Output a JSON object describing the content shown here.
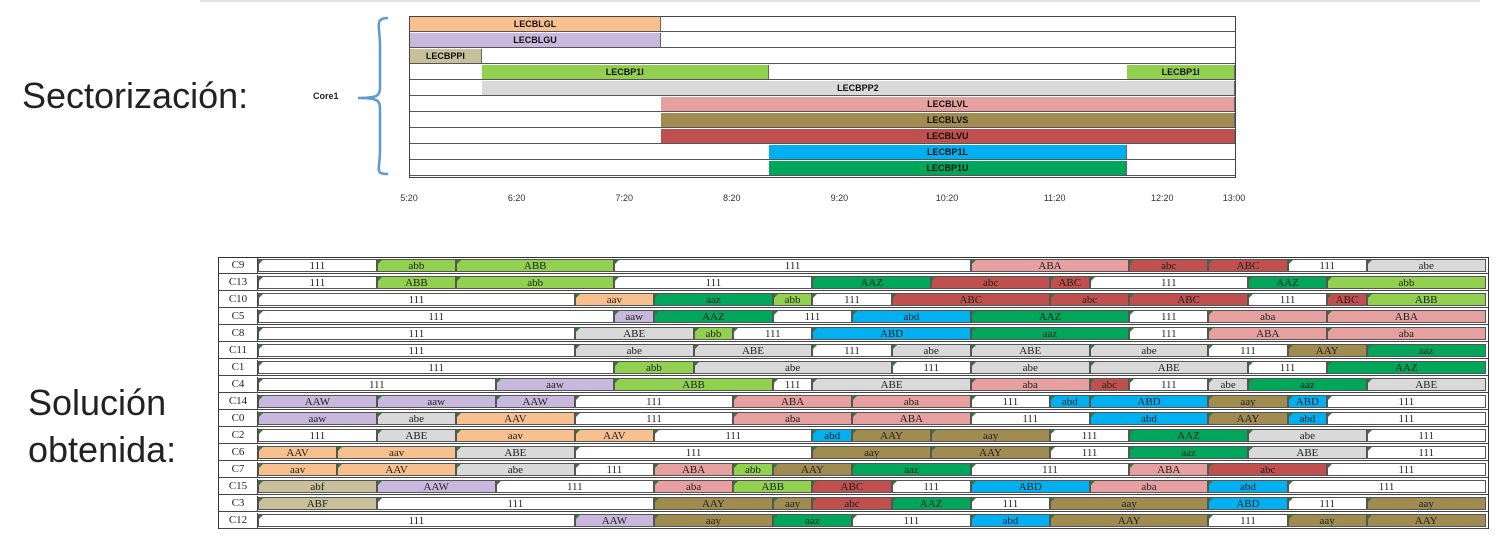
{
  "labels": {
    "sectorizacion": "Sectorización:",
    "solucion_line1": "Solución",
    "solucion_line2": "obtenida:",
    "core": "Core1"
  },
  "colors": {
    "orange": "#f9c08f",
    "lavender": "#c9b8dd",
    "tan": "#c7c09a",
    "green": "#92d050",
    "gray": "#d9d9d9",
    "pink": "#e6a0a0",
    "olive": "#a08c50",
    "red": "#c0504d",
    "blue": "#00b0f0",
    "darkgreen": "#00a65a",
    "white": "#ffffff"
  },
  "top_chart": {
    "start_minutes": 320,
    "end_minutes": 780,
    "ticks": [
      "5:20",
      "6:20",
      "7:20",
      "8:20",
      "9:20",
      "10:20",
      "11:20",
      "12:20",
      "13:00"
    ],
    "rows": [
      [
        {
          "label": "LECBLGL",
          "start": "5:20",
          "end": "7:40",
          "color": "orange"
        }
      ],
      [
        {
          "label": "LECBLGU",
          "start": "5:20",
          "end": "7:40",
          "color": "lavender"
        }
      ],
      [
        {
          "label": "LECBPPI",
          "start": "5:20",
          "end": "6:00",
          "color": "tan"
        }
      ],
      [
        {
          "label": "LECBP1I",
          "start": "6:00",
          "end": "8:40",
          "color": "green"
        },
        {
          "label": "LECBP1I",
          "start": "12:00",
          "end": "13:00",
          "color": "green"
        }
      ],
      [
        {
          "label": "LECBPP2",
          "start": "6:00",
          "end": "13:00",
          "color": "gray"
        }
      ],
      [
        {
          "label": "LECBLVL",
          "start": "7:40",
          "end": "13:00",
          "color": "pink"
        }
      ],
      [
        {
          "label": "LECBLVS",
          "start": "7:40",
          "end": "13:00",
          "color": "olive"
        }
      ],
      [
        {
          "label": "LECBLVU",
          "start": "7:40",
          "end": "13:00",
          "color": "red"
        }
      ],
      [
        {
          "label": "LECBP1L",
          "start": "8:40",
          "end": "12:00",
          "color": "blue"
        }
      ],
      [
        {
          "label": "LECBP1U",
          "start": "8:40",
          "end": "12:00",
          "color": "darkgreen"
        }
      ]
    ]
  },
  "bottom_chart": {
    "slots": 35,
    "rows": [
      {
        "label": "C9",
        "cells": [
          [
            "111",
            0,
            3,
            "white"
          ],
          [
            "abb",
            3,
            5,
            "green"
          ],
          [
            "ABB",
            5,
            9,
            "green"
          ],
          [
            "111",
            9,
            18,
            "white"
          ],
          [
            "ABA",
            18,
            22,
            "pink"
          ],
          [
            "abc",
            22,
            24,
            "red"
          ],
          [
            "ABC",
            24,
            26,
            "red"
          ],
          [
            "111",
            26,
            28,
            "white"
          ],
          [
            "abe",
            28,
            31,
            "gray"
          ]
        ]
      },
      {
        "label": "C13",
        "cells": [
          [
            "111",
            0,
            3,
            "white"
          ],
          [
            "ABB",
            3,
            5,
            "green"
          ],
          [
            "abb",
            5,
            9,
            "green"
          ],
          [
            "111",
            9,
            14,
            "white"
          ],
          [
            "AAZ",
            14,
            17,
            "darkgreen"
          ],
          [
            "abc",
            17,
            20,
            "red"
          ],
          [
            "ABC",
            20,
            21,
            "red"
          ],
          [
            "111",
            21,
            25,
            "white"
          ],
          [
            "AAZ",
            25,
            27,
            "darkgreen"
          ],
          [
            "abb",
            27,
            31,
            "green"
          ]
        ]
      },
      {
        "label": "C10",
        "cells": [
          [
            "111",
            0,
            8,
            "white"
          ],
          [
            "aav",
            8,
            10,
            "orange"
          ],
          [
            "aaz",
            10,
            13,
            "darkgreen"
          ],
          [
            "abb",
            13,
            14,
            "green"
          ],
          [
            "111",
            14,
            16,
            "white"
          ],
          [
            "ABC",
            16,
            20,
            "red"
          ],
          [
            "abc",
            20,
            22,
            "red"
          ],
          [
            "ABC",
            22,
            25,
            "red"
          ],
          [
            "111",
            25,
            27,
            "white"
          ],
          [
            "ABC",
            27,
            28,
            "red"
          ],
          [
            "ABB",
            28,
            31,
            "green"
          ]
        ]
      },
      {
        "label": "C5",
        "cells": [
          [
            "111",
            0,
            9,
            "white"
          ],
          [
            "aaw",
            9,
            10,
            "lavender"
          ],
          [
            "AAZ",
            10,
            13,
            "darkgreen"
          ],
          [
            "111",
            13,
            15,
            "white"
          ],
          [
            "abd",
            15,
            18,
            "blue"
          ],
          [
            "AAZ",
            18,
            22,
            "darkgreen"
          ],
          [
            "111",
            22,
            24,
            "white"
          ],
          [
            "aba",
            24,
            27,
            "pink"
          ],
          [
            "ABA",
            27,
            31,
            "pink"
          ]
        ]
      },
      {
        "label": "C8",
        "cells": [
          [
            "111",
            0,
            8,
            "white"
          ],
          [
            "ABE",
            8,
            11,
            "gray"
          ],
          [
            "abb",
            11,
            12,
            "green"
          ],
          [
            "111",
            12,
            14,
            "white"
          ],
          [
            "ABD",
            14,
            18,
            "blue"
          ],
          [
            "aaz",
            18,
            22,
            "darkgreen"
          ],
          [
            "111",
            22,
            24,
            "white"
          ],
          [
            "ABA",
            24,
            27,
            "pink"
          ],
          [
            "aba",
            27,
            31,
            "pink"
          ]
        ]
      },
      {
        "label": "C11",
        "cells": [
          [
            "111",
            0,
            8,
            "white"
          ],
          [
            "abe",
            8,
            11,
            "gray"
          ],
          [
            "ABE",
            11,
            14,
            "gray"
          ],
          [
            "111",
            14,
            16,
            "white"
          ],
          [
            "abe",
            16,
            18,
            "gray"
          ],
          [
            "ABE",
            18,
            21,
            "gray"
          ],
          [
            "abe",
            21,
            24,
            "gray"
          ],
          [
            "111",
            24,
            26,
            "white"
          ],
          [
            "AAY",
            26,
            28,
            "olive"
          ],
          [
            "aaz",
            28,
            31,
            "darkgreen"
          ]
        ]
      },
      {
        "label": "C1",
        "cells": [
          [
            "111",
            0,
            9,
            "white"
          ],
          [
            "abb",
            9,
            11,
            "green"
          ],
          [
            "abe",
            11,
            16,
            "gray"
          ],
          [
            "111",
            16,
            18,
            "white"
          ],
          [
            "abe",
            18,
            21,
            "gray"
          ],
          [
            "ABE",
            21,
            25,
            "gray"
          ],
          [
            "111",
            25,
            27,
            "white"
          ],
          [
            "AAZ",
            27,
            31,
            "darkgreen"
          ]
        ]
      },
      {
        "label": "C4",
        "cells": [
          [
            "111",
            0,
            6,
            "white"
          ],
          [
            "aaw",
            6,
            9,
            "lavender"
          ],
          [
            "ABB",
            9,
            13,
            "green"
          ],
          [
            "111",
            13,
            14,
            "white"
          ],
          [
            "ABE",
            14,
            18,
            "gray"
          ],
          [
            "aba",
            18,
            21,
            "pink"
          ],
          [
            "abc",
            21,
            22,
            "red"
          ],
          [
            "111",
            22,
            24,
            "white"
          ],
          [
            "abe",
            24,
            25,
            "gray"
          ],
          [
            "aaz",
            25,
            28,
            "darkgreen"
          ],
          [
            "ABE",
            28,
            31,
            "gray"
          ]
        ]
      },
      {
        "label": "C14",
        "cells": [
          [
            "AAW",
            0,
            3,
            "lavender"
          ],
          [
            "aaw",
            3,
            6,
            "lavender"
          ],
          [
            "AAW",
            6,
            8,
            "lavender"
          ],
          [
            "111",
            8,
            12,
            "white"
          ],
          [
            "ABA",
            12,
            15,
            "pink"
          ],
          [
            "aba",
            15,
            18,
            "pink"
          ],
          [
            "111",
            18,
            20,
            "white"
          ],
          [
            "abd",
            20,
            21,
            "blue"
          ],
          [
            "ABD",
            21,
            24,
            "blue"
          ],
          [
            "aay",
            24,
            26,
            "olive"
          ],
          [
            "ABD",
            26,
            27,
            "blue"
          ],
          [
            "111",
            27,
            31,
            "white"
          ]
        ]
      },
      {
        "label": "C0",
        "cells": [
          [
            "aaw",
            0,
            3,
            "lavender"
          ],
          [
            "abe",
            3,
            5,
            "gray"
          ],
          [
            "AAV",
            5,
            8,
            "orange"
          ],
          [
            "111",
            8,
            12,
            "white"
          ],
          [
            "aba",
            12,
            15,
            "pink"
          ],
          [
            "ABA",
            15,
            18,
            "pink"
          ],
          [
            "111",
            18,
            21,
            "white"
          ],
          [
            "abd",
            21,
            24,
            "blue"
          ],
          [
            "AAY",
            24,
            26,
            "olive"
          ],
          [
            "abd",
            26,
            27,
            "blue"
          ],
          [
            "111",
            27,
            31,
            "white"
          ]
        ]
      },
      {
        "label": "C2",
        "cells": [
          [
            "111",
            0,
            3,
            "white"
          ],
          [
            "ABE",
            3,
            5,
            "gray"
          ],
          [
            "aav",
            5,
            8,
            "orange"
          ],
          [
            "AAV",
            8,
            10,
            "orange"
          ],
          [
            "111",
            10,
            14,
            "white"
          ],
          [
            "abd",
            14,
            15,
            "blue"
          ],
          [
            "AAY",
            15,
            17,
            "olive"
          ],
          [
            "aay",
            17,
            20,
            "olive"
          ],
          [
            "111",
            20,
            22,
            "white"
          ],
          [
            "AAZ",
            22,
            25,
            "darkgreen"
          ],
          [
            "abe",
            25,
            28,
            "gray"
          ],
          [
            "111",
            28,
            31,
            "white"
          ]
        ]
      },
      {
        "label": "C6",
        "cells": [
          [
            "AAV",
            0,
            2,
            "orange"
          ],
          [
            "aav",
            2,
            5,
            "orange"
          ],
          [
            "ABE",
            5,
            8,
            "gray"
          ],
          [
            "111",
            8,
            14,
            "white"
          ],
          [
            "aay",
            14,
            17,
            "olive"
          ],
          [
            "AAY",
            17,
            20,
            "olive"
          ],
          [
            "111",
            20,
            22,
            "white"
          ],
          [
            "aaz",
            22,
            25,
            "darkgreen"
          ],
          [
            "ABE",
            25,
            28,
            "gray"
          ],
          [
            "111",
            28,
            31,
            "white"
          ]
        ]
      },
      {
        "label": "C7",
        "cells": [
          [
            "aav",
            0,
            2,
            "orange"
          ],
          [
            "AAV",
            2,
            5,
            "orange"
          ],
          [
            "abe",
            5,
            8,
            "gray"
          ],
          [
            "111",
            8,
            10,
            "white"
          ],
          [
            "ABA",
            10,
            12,
            "pink"
          ],
          [
            "abb",
            12,
            13,
            "green"
          ],
          [
            "AAY",
            13,
            15,
            "olive"
          ],
          [
            "aaz",
            15,
            18,
            "darkgreen"
          ],
          [
            "111",
            18,
            22,
            "white"
          ],
          [
            "ABA",
            22,
            24,
            "pink"
          ],
          [
            "abc",
            24,
            27,
            "red"
          ],
          [
            "111",
            27,
            31,
            "white"
          ]
        ]
      },
      {
        "label": "C15",
        "cells": [
          [
            "abf",
            0,
            3,
            "tan"
          ],
          [
            "AAW",
            3,
            6,
            "lavender"
          ],
          [
            "111",
            6,
            10,
            "white"
          ],
          [
            "aba",
            10,
            12,
            "pink"
          ],
          [
            "ABB",
            12,
            14,
            "green"
          ],
          [
            "ABC",
            14,
            16,
            "red"
          ],
          [
            "111",
            16,
            18,
            "white"
          ],
          [
            "ABD",
            18,
            21,
            "blue"
          ],
          [
            "aba",
            21,
            24,
            "pink"
          ],
          [
            "abd",
            24,
            26,
            "blue"
          ],
          [
            "111",
            26,
            31,
            "white"
          ]
        ]
      },
      {
        "label": "C3",
        "cells": [
          [
            "ABF",
            0,
            3,
            "tan"
          ],
          [
            "111",
            3,
            10,
            "white"
          ],
          [
            "AAY",
            10,
            13,
            "olive"
          ],
          [
            "aay",
            13,
            14,
            "olive"
          ],
          [
            "abc",
            14,
            16,
            "red"
          ],
          [
            "AAZ",
            16,
            18,
            "darkgreen"
          ],
          [
            "111",
            18,
            20,
            "white"
          ],
          [
            "aay",
            20,
            24,
            "olive"
          ],
          [
            "ABD",
            24,
            26,
            "blue"
          ],
          [
            "111",
            26,
            28,
            "white"
          ],
          [
            "aay",
            28,
            31,
            "olive"
          ]
        ]
      },
      {
        "label": "C12",
        "cells": [
          [
            "111",
            0,
            8,
            "white"
          ],
          [
            "AAW",
            8,
            10,
            "lavender"
          ],
          [
            "aay",
            10,
            13,
            "olive"
          ],
          [
            "aaz",
            13,
            15,
            "darkgreen"
          ],
          [
            "111",
            15,
            18,
            "white"
          ],
          [
            "abd",
            18,
            20,
            "blue"
          ],
          [
            "AAY",
            20,
            24,
            "olive"
          ],
          [
            "111",
            24,
            26,
            "white"
          ],
          [
            "aay",
            26,
            28,
            "olive"
          ],
          [
            "AAY",
            28,
            31,
            "olive"
          ]
        ]
      }
    ]
  }
}
